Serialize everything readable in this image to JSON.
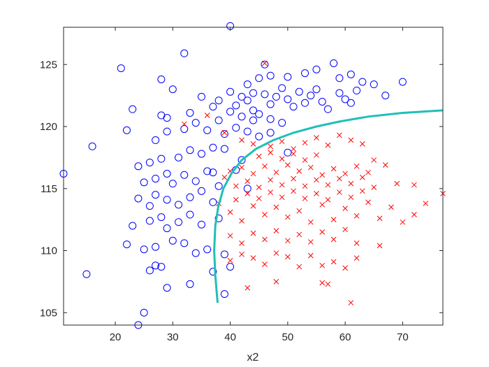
{
  "chart_data": {
    "type": "scatter",
    "title": "",
    "xlabel": "x2",
    "ylabel": "",
    "xlim": [
      11,
      77
    ],
    "ylim": [
      104,
      128
    ],
    "xticks": [
      20,
      30,
      40,
      50,
      60,
      70
    ],
    "yticks": [
      105,
      110,
      115,
      120,
      125
    ],
    "grid": false,
    "legend": "none",
    "colors": {
      "circles": "#0000ff",
      "crosses": "#ff0000",
      "boundary": "#1fbfb8",
      "axis": "#262626"
    },
    "series": [
      {
        "marker": "circle",
        "points": [
          [
            40,
            128.1
          ],
          [
            32,
            125.9
          ],
          [
            21,
            124.7
          ],
          [
            28,
            123.8
          ],
          [
            30,
            123
          ],
          [
            23,
            121.4
          ],
          [
            29,
            120.7
          ],
          [
            22,
            119.7
          ],
          [
            16,
            118.4
          ],
          [
            11,
            116.2
          ],
          [
            15,
            108.1
          ],
          [
            24,
            104
          ],
          [
            25,
            105
          ],
          [
            33,
            107.3
          ],
          [
            29,
            107
          ],
          [
            39,
            106.5
          ],
          [
            37,
            108.3
          ],
          [
            40,
            108.7
          ],
          [
            26,
            108.4
          ],
          [
            27,
            108.8
          ],
          [
            28,
            108.7
          ],
          [
            22,
            110.5
          ],
          [
            25,
            110.1
          ],
          [
            27,
            110.3
          ],
          [
            30,
            110.8
          ],
          [
            32,
            110.6
          ],
          [
            34,
            109.8
          ],
          [
            36,
            110.1
          ],
          [
            39,
            109.7
          ],
          [
            23,
            112
          ],
          [
            26,
            112.4
          ],
          [
            28,
            112.7
          ],
          [
            29,
            111.8
          ],
          [
            31,
            112.3
          ],
          [
            33,
            112.9
          ],
          [
            35,
            112.1
          ],
          [
            38,
            112.6
          ],
          [
            24,
            114.2
          ],
          [
            26,
            113.6
          ],
          [
            27,
            114.5
          ],
          [
            29,
            114.1
          ],
          [
            31,
            113.7
          ],
          [
            33,
            114.3
          ],
          [
            35,
            114.8
          ],
          [
            37,
            113.9
          ],
          [
            25,
            115.5
          ],
          [
            27,
            115.8
          ],
          [
            29,
            116.2
          ],
          [
            30,
            115.4
          ],
          [
            32,
            116.1
          ],
          [
            34,
            115.6
          ],
          [
            36,
            116.4
          ],
          [
            38,
            115.2
          ],
          [
            24,
            116.8
          ],
          [
            26,
            117.1
          ],
          [
            28,
            117.4
          ],
          [
            31,
            117.5
          ],
          [
            33,
            118.1
          ],
          [
            35,
            117.8
          ],
          [
            37,
            118.3
          ],
          [
            27,
            118.9
          ],
          [
            29,
            119.6
          ],
          [
            32,
            119.8
          ],
          [
            34,
            120.3
          ],
          [
            36,
            119.7
          ],
          [
            38,
            120.5
          ],
          [
            28,
            120.9
          ],
          [
            33,
            121.1
          ],
          [
            37,
            121.6
          ],
          [
            41,
            121.7
          ],
          [
            43,
            122.1
          ],
          [
            44,
            121.3
          ],
          [
            46,
            122.6
          ],
          [
            47,
            121.8
          ],
          [
            48,
            122.4
          ],
          [
            49,
            123.1
          ],
          [
            50,
            122.2
          ],
          [
            51,
            121.6
          ],
          [
            52,
            122.8
          ],
          [
            53,
            121.9
          ],
          [
            54,
            122.5
          ],
          [
            55,
            123
          ],
          [
            56,
            122
          ],
          [
            57,
            121.4
          ],
          [
            59,
            122.7
          ],
          [
            60,
            122.2
          ],
          [
            61,
            121.9
          ],
          [
            62,
            122.9
          ],
          [
            63,
            123.6
          ],
          [
            65,
            123.4
          ],
          [
            67,
            122.5
          ],
          [
            70,
            123.6
          ],
          [
            58,
            125.1
          ],
          [
            46,
            125
          ],
          [
            43,
            123.4
          ],
          [
            45,
            123.9
          ],
          [
            47,
            124.1
          ],
          [
            50,
            124
          ],
          [
            53,
            124.3
          ],
          [
            55,
            124.6
          ],
          [
            59,
            123.9
          ],
          [
            61,
            124.2
          ],
          [
            40,
            121.2
          ],
          [
            42,
            120.8
          ],
          [
            44,
            120.5
          ],
          [
            45,
            121
          ],
          [
            47,
            120.6
          ],
          [
            49,
            120.3
          ],
          [
            39,
            119.4
          ],
          [
            41,
            119.9
          ],
          [
            43,
            119.6
          ],
          [
            45,
            119.2
          ],
          [
            47,
            119.5
          ],
          [
            35,
            122.4
          ],
          [
            38,
            122.1
          ],
          [
            40,
            122.8
          ],
          [
            42,
            122.4
          ],
          [
            44,
            122.7
          ],
          [
            39,
            118.2
          ],
          [
            41,
            116.5
          ],
          [
            43,
            115
          ],
          [
            42,
            117.3
          ],
          [
            50,
            117.9
          ],
          [
            37,
            116.3
          ]
        ]
      },
      {
        "marker": "cross",
        "points": [
          [
            46,
            125.1
          ],
          [
            36,
            120.9
          ],
          [
            32,
            120.2
          ],
          [
            39,
            119.5
          ],
          [
            42,
            118.9
          ],
          [
            44,
            118.6
          ],
          [
            47,
            118.4
          ],
          [
            49,
            118.8
          ],
          [
            51,
            118.2
          ],
          [
            53,
            118.7
          ],
          [
            55,
            119.1
          ],
          [
            57,
            118.5
          ],
          [
            59,
            119.3
          ],
          [
            61,
            118.9
          ],
          [
            63,
            118.6
          ],
          [
            65,
            117.3
          ],
          [
            67,
            116.9
          ],
          [
            69,
            115.4
          ],
          [
            72,
            115.3
          ],
          [
            77,
            114.6
          ],
          [
            74,
            113.8
          ],
          [
            72,
            112.9
          ],
          [
            70,
            112.3
          ],
          [
            68,
            113.5
          ],
          [
            66,
            112.6
          ],
          [
            64,
            113.9
          ],
          [
            62,
            112.8
          ],
          [
            60,
            113.4
          ],
          [
            58,
            112.5
          ],
          [
            56,
            113.7
          ],
          [
            54,
            112.3
          ],
          [
            52,
            113.2
          ],
          [
            50,
            112.7
          ],
          [
            48,
            113.5
          ],
          [
            46,
            112.9
          ],
          [
            44,
            113.6
          ],
          [
            42,
            112.4
          ],
          [
            40,
            113.1
          ],
          [
            38,
            113.8
          ],
          [
            39,
            115.9
          ],
          [
            40,
            116.4
          ],
          [
            42,
            116.7
          ],
          [
            44,
            116.2
          ],
          [
            46,
            116.8
          ],
          [
            48,
            116.3
          ],
          [
            50,
            116.9
          ],
          [
            52,
            116.4
          ],
          [
            54,
            116.7
          ],
          [
            56,
            116.1
          ],
          [
            58,
            116.6
          ],
          [
            60,
            116.2
          ],
          [
            62,
            116.8
          ],
          [
            64,
            116.3
          ],
          [
            41,
            115.2
          ],
          [
            43,
            115.6
          ],
          [
            45,
            115.1
          ],
          [
            47,
            115.7
          ],
          [
            49,
            115.3
          ],
          [
            51,
            115.8
          ],
          [
            53,
            115.2
          ],
          [
            55,
            115.7
          ],
          [
            57,
            115.3
          ],
          [
            59,
            115.8
          ],
          [
            61,
            115.4
          ],
          [
            63,
            115.9
          ],
          [
            65,
            115.1
          ],
          [
            41,
            114.1
          ],
          [
            43,
            114.6
          ],
          [
            45,
            114.2
          ],
          [
            47,
            114.7
          ],
          [
            49,
            114.3
          ],
          [
            51,
            114.8
          ],
          [
            53,
            114.2
          ],
          [
            55,
            114.6
          ],
          [
            57,
            114.1
          ],
          [
            59,
            114.7
          ],
          [
            61,
            114.3
          ],
          [
            63,
            114.8
          ],
          [
            40,
            111.2
          ],
          [
            42,
            110.6
          ],
          [
            44,
            111.4
          ],
          [
            46,
            110.9
          ],
          [
            48,
            111.6
          ],
          [
            50,
            110.8
          ],
          [
            52,
            111.3
          ],
          [
            54,
            110.7
          ],
          [
            56,
            111.5
          ],
          [
            58,
            110.9
          ],
          [
            60,
            111.7
          ],
          [
            62,
            110.6
          ],
          [
            66,
            110.4
          ],
          [
            40,
            109.2
          ],
          [
            42,
            109.7
          ],
          [
            44,
            109.4
          ],
          [
            46,
            108.9
          ],
          [
            48,
            109.8
          ],
          [
            50,
            109.5
          ],
          [
            52,
            108.7
          ],
          [
            54,
            109.6
          ],
          [
            56,
            108.8
          ],
          [
            58,
            109.1
          ],
          [
            60,
            108.6
          ],
          [
            62,
            109.4
          ],
          [
            43,
            107
          ],
          [
            48,
            107.5
          ],
          [
            56,
            107.4
          ],
          [
            57,
            107.3
          ],
          [
            61,
            105.8
          ],
          [
            45,
            117.6
          ],
          [
            47,
            117.9
          ],
          [
            49,
            117.4
          ],
          [
            51,
            117.8
          ],
          [
            53,
            117.3
          ],
          [
            55,
            117.7
          ]
        ]
      },
      {
        "marker": "line",
        "points": [
          [
            37.8,
            105.8
          ],
          [
            37.4,
            108
          ],
          [
            37.2,
            110
          ],
          [
            37.4,
            112
          ],
          [
            37.9,
            113.5
          ],
          [
            38.8,
            115
          ],
          [
            40.2,
            116.2
          ],
          [
            42,
            117.3
          ],
          [
            44.5,
            118.2
          ],
          [
            47.5,
            118.9
          ],
          [
            51,
            119.5
          ],
          [
            55,
            120
          ],
          [
            59,
            120.4
          ],
          [
            64,
            120.8
          ],
          [
            70,
            121.1
          ],
          [
            77,
            121.3
          ]
        ]
      }
    ]
  }
}
